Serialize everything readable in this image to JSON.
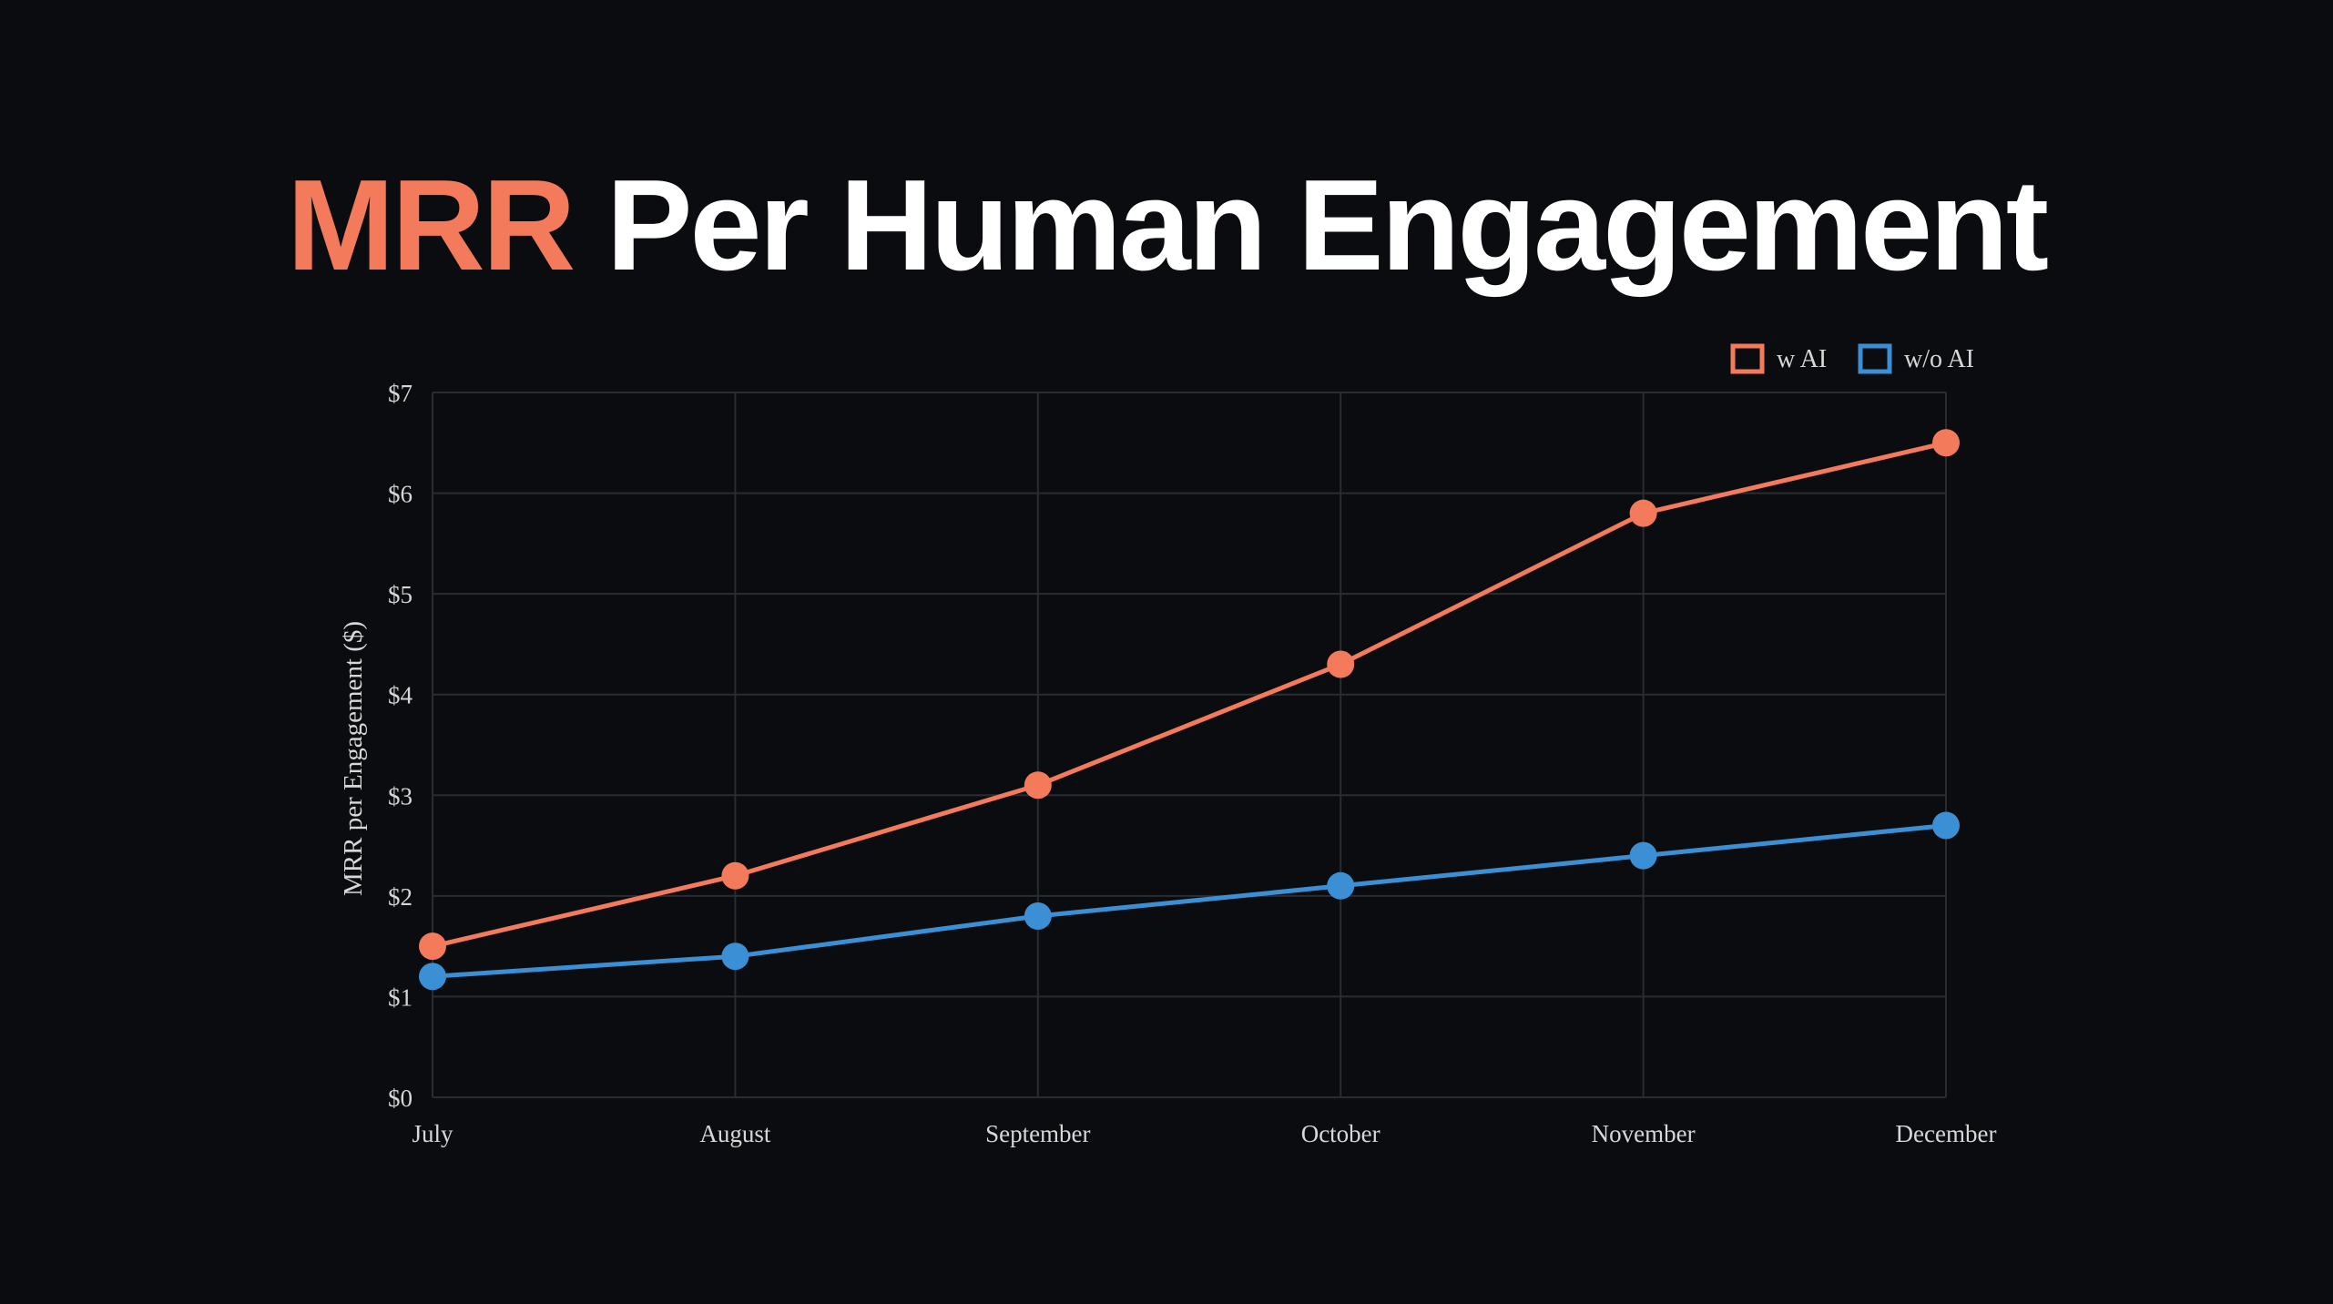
{
  "headline": {
    "accent": "MRR",
    "rest": " Per Human Engagement"
  },
  "colors": {
    "background": "#0b0c0f",
    "accent": "#f47a5c",
    "series_w_ai": "#f47a5c",
    "series_wo_ai": "#3b8fd4",
    "grid": "#2a2c31",
    "tick_text": "#d7d7d7"
  },
  "chart_data": {
    "type": "line",
    "title": "",
    "xlabel": "",
    "ylabel": "MRR per Engagement ($)",
    "categories": [
      "July",
      "August",
      "September",
      "October",
      "November",
      "December"
    ],
    "ylim": [
      0,
      7
    ],
    "yticks": [
      "$0",
      "$1",
      "$2",
      "$3",
      "$4",
      "$5",
      "$6",
      "$7"
    ],
    "grid": true,
    "legend_position": "top-right",
    "series": [
      {
        "name": "w AI",
        "color": "#f47a5c",
        "values": [
          1.5,
          2.2,
          3.1,
          4.3,
          5.8,
          6.5
        ]
      },
      {
        "name": "w/o AI",
        "color": "#3b8fd4",
        "values": [
          1.2,
          1.4,
          1.8,
          2.1,
          2.4,
          2.7
        ]
      }
    ]
  }
}
